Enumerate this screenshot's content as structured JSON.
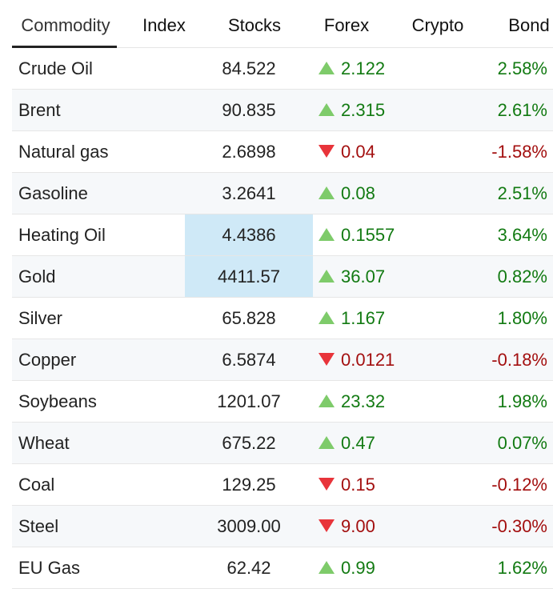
{
  "tabs": [
    "Commodity",
    "Index",
    "Stocks",
    "Forex",
    "Crypto",
    "Bond"
  ],
  "active_tab": 0,
  "rows": [
    {
      "name": "Crude Oil",
      "price": "84.522",
      "change": "2.122",
      "percent": "2.58%"
    },
    {
      "name": "Brent",
      "price": "90.835",
      "change": "2.315",
      "percent": "2.61%"
    },
    {
      "name": "Natural gas",
      "price": "2.6898",
      "change": "0.04",
      "percent": "-1.58%"
    },
    {
      "name": "Gasoline",
      "price": "3.2641",
      "change": "0.08",
      "percent": "2.51%"
    },
    {
      "name": "Heating Oil",
      "price": "4.4386",
      "change": "0.1557",
      "percent": "3.64%",
      "highlighted": true
    },
    {
      "name": "Gold",
      "price": "4411.57",
      "change": "36.07",
      "percent": "0.82%",
      "highlighted": true
    },
    {
      "name": "Silver",
      "price": "65.828",
      "change": "1.167",
      "percent": "1.80%"
    },
    {
      "name": "Copper",
      "price": "6.5874",
      "change": "0.0121",
      "percent": "-0.18%"
    },
    {
      "name": "Soybeans",
      "price": "1201.07",
      "change": "23.32",
      "percent": "1.98%"
    },
    {
      "name": "Wheat",
      "price": "675.22",
      "change": "0.47",
      "percent": "0.07%"
    },
    {
      "name": "Coal",
      "price": "129.25",
      "change": "0.15",
      "percent": "-0.12%"
    },
    {
      "name": "Steel",
      "price": "3009.00",
      "change": "9.00",
      "percent": "-0.30%"
    },
    {
      "name": "EU Gas",
      "price": "62.42",
      "change": "0.99",
      "percent": "1.62%"
    }
  ]
}
